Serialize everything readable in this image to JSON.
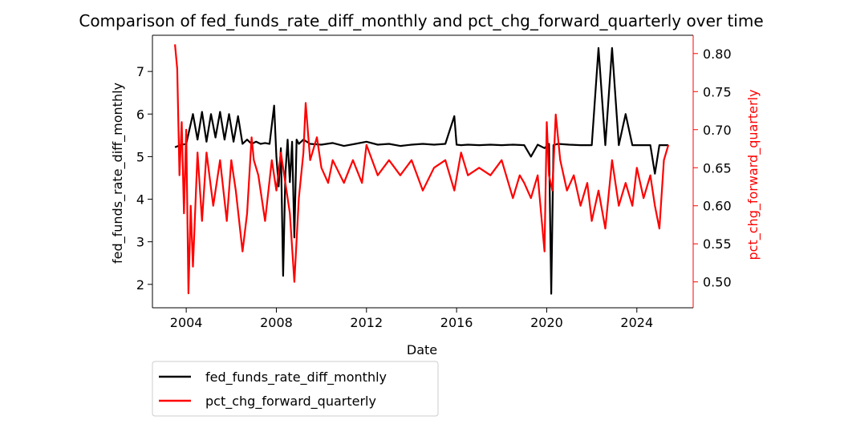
{
  "chart_data": {
    "type": "line",
    "title": "Comparison of fed_funds_rate_diff_monthly and pct_chg_forward_quarterly over time",
    "xlabel": "Date",
    "ylabel_left": "fed_funds_rate_diff_monthly",
    "ylabel_right": "pct_chg_forward_quarterly",
    "x_ticks": [
      "2004",
      "2008",
      "2012",
      "2016",
      "2020",
      "2024"
    ],
    "y_left_ticks": [
      "2",
      "3",
      "4",
      "5",
      "6",
      "7"
    ],
    "y_right_ticks": [
      "0.50",
      "0.55",
      "0.60",
      "0.65",
      "0.70",
      "0.75",
      "0.80"
    ],
    "xlim": [
      2002.5,
      2026.5
    ],
    "ylim_left": [
      1.45,
      7.85
    ],
    "ylim_right": [
      0.466,
      0.824
    ],
    "grid": false,
    "legend_position": "below-left",
    "series": [
      {
        "name": "fed_funds_rate_diff_monthly",
        "axis": "left",
        "color": "#000000",
        "x": [
          2003.5,
          2003.8,
          2004.0,
          2004.3,
          2004.5,
          2004.7,
          2004.9,
          2005.1,
          2005.3,
          2005.5,
          2005.7,
          2005.9,
          2006.1,
          2006.3,
          2006.5,
          2006.7,
          2006.9,
          2007.1,
          2007.3,
          2007.5,
          2007.7,
          2007.9,
          2008.0,
          2008.1,
          2008.2,
          2008.3,
          2008.4,
          2008.5,
          2008.6,
          2008.7,
          2008.8,
          2008.9,
          2009.0,
          2009.2,
          2009.5,
          2010.0,
          2010.5,
          2011.0,
          2011.5,
          2012.0,
          2012.5,
          2013.0,
          2013.5,
          2014.0,
          2014.5,
          2015.0,
          2015.5,
          2015.9,
          2016.0,
          2016.2,
          2016.5,
          2017.0,
          2017.5,
          2018.0,
          2018.5,
          2019.0,
          2019.3,
          2019.6,
          2019.9,
          2020.1,
          2020.2,
          2020.3,
          2020.5,
          2021.0,
          2021.5,
          2022.0,
          2022.3,
          2022.6,
          2022.9,
          2023.2,
          2023.5,
          2023.8,
          2024.0,
          2024.3,
          2024.6,
          2024.8,
          2025.0,
          2025.4
        ],
        "y": [
          5.22,
          5.28,
          5.3,
          6.0,
          5.4,
          6.05,
          5.35,
          6.0,
          5.45,
          6.05,
          5.4,
          6.0,
          5.35,
          5.95,
          5.3,
          5.4,
          5.3,
          5.35,
          5.3,
          5.32,
          5.3,
          6.2,
          5.0,
          4.3,
          5.2,
          2.2,
          4.6,
          5.4,
          4.4,
          5.35,
          3.1,
          5.4,
          5.3,
          5.4,
          5.3,
          5.28,
          5.32,
          5.25,
          5.3,
          5.35,
          5.28,
          5.3,
          5.25,
          5.28,
          5.3,
          5.28,
          5.3,
          5.95,
          5.28,
          5.27,
          5.28,
          5.27,
          5.28,
          5.27,
          5.28,
          5.27,
          5.0,
          5.28,
          5.2,
          5.3,
          1.78,
          5.27,
          5.3,
          5.28,
          5.27,
          5.27,
          7.55,
          5.27,
          7.55,
          5.27,
          6.0,
          5.27,
          5.27,
          5.27,
          5.27,
          4.6,
          5.27,
          5.27
        ]
      },
      {
        "name": "pct_chg_forward_quarterly",
        "axis": "right",
        "color": "#ff0000",
        "x": [
          2003.5,
          2003.6,
          2003.7,
          2003.8,
          2003.9,
          2004.0,
          2004.1,
          2004.2,
          2004.3,
          2004.5,
          2004.7,
          2004.9,
          2005.2,
          2005.5,
          2005.8,
          2006.0,
          2006.2,
          2006.5,
          2006.7,
          2006.9,
          2007.0,
          2007.2,
          2007.5,
          2007.8,
          2008.0,
          2008.2,
          2008.4,
          2008.6,
          2008.8,
          2009.0,
          2009.2,
          2009.3,
          2009.5,
          2009.8,
          2010.0,
          2010.3,
          2010.5,
          2011.0,
          2011.4,
          2011.8,
          2012.0,
          2012.5,
          2013.0,
          2013.5,
          2014.0,
          2014.5,
          2015.0,
          2015.5,
          2015.9,
          2016.2,
          2016.5,
          2017.0,
          2017.5,
          2018.0,
          2018.5,
          2018.8,
          2019.0,
          2019.3,
          2019.6,
          2019.9,
          2020.0,
          2020.1,
          2020.25,
          2020.4,
          2020.6,
          2020.9,
          2021.2,
          2021.5,
          2021.8,
          2022.0,
          2022.3,
          2022.6,
          2022.9,
          2023.2,
          2023.5,
          2023.8,
          2024.0,
          2024.3,
          2024.6,
          2024.8,
          2025.0,
          2025.2,
          2025.4
        ],
        "y": [
          0.812,
          0.78,
          0.64,
          0.71,
          0.59,
          0.7,
          0.485,
          0.6,
          0.52,
          0.67,
          0.58,
          0.67,
          0.6,
          0.66,
          0.58,
          0.66,
          0.62,
          0.54,
          0.59,
          0.69,
          0.66,
          0.64,
          0.58,
          0.66,
          0.62,
          0.67,
          0.63,
          0.59,
          0.5,
          0.61,
          0.67,
          0.735,
          0.66,
          0.69,
          0.65,
          0.63,
          0.66,
          0.63,
          0.66,
          0.63,
          0.68,
          0.64,
          0.66,
          0.64,
          0.66,
          0.62,
          0.65,
          0.66,
          0.62,
          0.67,
          0.64,
          0.65,
          0.64,
          0.66,
          0.61,
          0.64,
          0.63,
          0.61,
          0.64,
          0.54,
          0.71,
          0.64,
          0.62,
          0.72,
          0.66,
          0.62,
          0.64,
          0.6,
          0.63,
          0.58,
          0.62,
          0.57,
          0.66,
          0.6,
          0.63,
          0.6,
          0.65,
          0.61,
          0.64,
          0.6,
          0.57,
          0.66,
          0.68
        ]
      }
    ]
  }
}
